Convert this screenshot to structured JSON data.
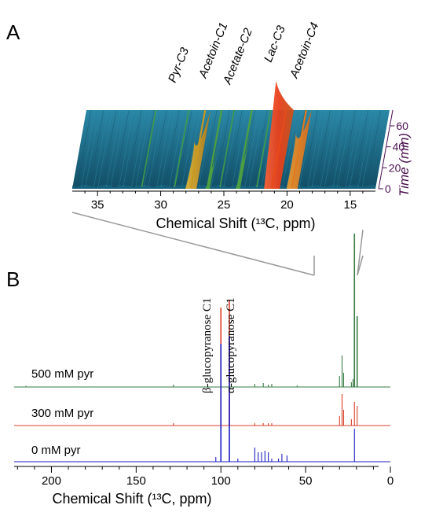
{
  "panel_a_letter": "A",
  "panel_b_letter": "B",
  "chart_data": [
    {
      "type": "area",
      "panel": "A",
      "xlabel": "Chemical Shift (¹³C, ppm)",
      "x_ticks": [
        35,
        30,
        25,
        20,
        15
      ],
      "xlim": [
        37,
        13
      ],
      "zlabel": "Time (min)",
      "z_ticks": [
        0,
        20,
        40,
        60
      ],
      "zlim": [
        0,
        75
      ],
      "peaks": [
        {
          "name": "Pyr-C3",
          "ppm": 27.6,
          "height": 3.0,
          "color": "#c99a20"
        },
        {
          "name": "Acetoin-C1",
          "ppm": 26.3,
          "height": 0.5,
          "color": "#4ea040"
        },
        {
          "name": "Acetate-C2",
          "ppm": 23.9,
          "height": 0.9,
          "color": "#4ea040"
        },
        {
          "name": "Lac-C3",
          "ppm": 21.2,
          "height": 9.0,
          "color": "#e84a1a"
        },
        {
          "name": "Acetoin-C4",
          "ppm": 19.6,
          "height": 3.6,
          "color": "#e07a20"
        }
      ],
      "surface_color": "#1c6b8a"
    },
    {
      "type": "line",
      "panel": "B",
      "xlabel": "Chemical Shift (¹³C, ppm)",
      "x_ticks": [
        200,
        150,
        100,
        50,
        0
      ],
      "xlim": [
        222,
        0
      ],
      "series": [
        {
          "name": "500 mM pyr",
          "color": "#3a7d44",
          "peaks": [
            [
              215,
              1.5
            ],
            [
              185,
              0.6
            ],
            [
              175,
              0.6
            ],
            [
              165,
              0.6
            ],
            [
              128,
              3
            ],
            [
              100,
              2.5
            ],
            [
              95,
              2.5
            ],
            [
              80,
              4
            ],
            [
              75,
              5
            ],
            [
              72,
              3
            ],
            [
              70,
              4
            ],
            [
              55,
              2
            ],
            [
              30,
              14
            ],
            [
              28.5,
              40
            ],
            [
              27.6,
              18
            ],
            [
              23,
              6
            ],
            [
              22,
              10
            ],
            [
              21.2,
              195
            ],
            [
              19.6,
              90
            ]
          ]
        },
        {
          "name": "300 mM pyr",
          "color": "#d9412b",
          "peaks": [
            [
              128,
              3
            ],
            [
              100,
              150
            ],
            [
              95,
              160
            ],
            [
              80,
              3
            ],
            [
              75,
              3
            ],
            [
              72,
              3
            ],
            [
              70,
              3
            ],
            [
              30,
              12
            ],
            [
              28.5,
              40
            ],
            [
              27.6,
              20
            ],
            [
              23,
              8
            ],
            [
              21.2,
              30
            ],
            [
              19.6,
              25
            ]
          ]
        },
        {
          "name": "0 mM pyr",
          "color": "#1f1fc0",
          "peaks": [
            [
              100,
              150
            ],
            [
              95,
              160
            ],
            [
              103,
              6
            ],
            [
              90,
              4
            ],
            [
              80,
              18
            ],
            [
              78,
              12
            ],
            [
              76,
              12
            ],
            [
              74,
              14
            ],
            [
              72,
              12
            ],
            [
              70,
              4
            ],
            [
              66,
              4
            ],
            [
              64,
              10
            ],
            [
              61,
              8
            ],
            [
              21.2,
              42
            ]
          ]
        }
      ],
      "annotations": [
        "β-glucopyranose C1",
        "α-glucopyranose C1"
      ]
    }
  ]
}
